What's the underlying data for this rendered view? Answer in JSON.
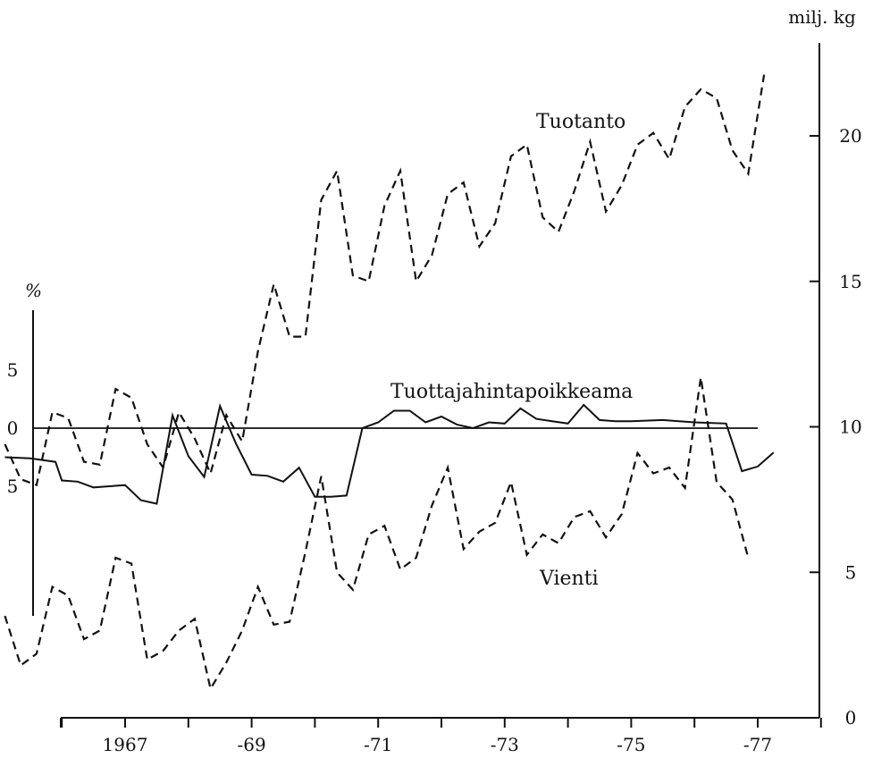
{
  "chart_data": {
    "type": "line",
    "x_tick_labels": [
      "1967",
      "-69",
      "-71",
      "-73",
      "-75",
      "-77"
    ],
    "x_tick_years": [
      1967,
      1969,
      1971,
      1973,
      1975,
      1977
    ],
    "xlim": [
      1965.0,
      1978.5
    ],
    "right_axis": {
      "unit": "milj. kg",
      "ticks": [
        0,
        5,
        10,
        15,
        20
      ],
      "ylim": [
        0,
        23
      ]
    },
    "left_axis": {
      "unit": "%",
      "tick_labels": [
        "5",
        "0",
        "5"
      ],
      "ticks": [
        5,
        0,
        -5
      ],
      "ylim": [
        -16.2,
        10.4
      ]
    },
    "series": [
      {
        "name": "Tuotanto",
        "axis": "right",
        "style": "dashed",
        "x": [
          1965.1,
          1965.35,
          1965.6,
          1965.85,
          1966.1,
          1966.35,
          1966.6,
          1966.85,
          1967.1,
          1967.35,
          1967.6,
          1967.85,
          1968.1,
          1968.35,
          1968.6,
          1968.85,
          1969.1,
          1969.35,
          1969.6,
          1969.85,
          1970.1,
          1970.35,
          1970.6,
          1970.85,
          1971.1,
          1971.35,
          1971.6,
          1971.85,
          1972.1,
          1972.35,
          1972.6,
          1972.85,
          1973.1,
          1973.35,
          1973.6,
          1973.85,
          1974.1,
          1974.35,
          1974.6,
          1974.85,
          1975.1,
          1975.35,
          1975.6,
          1975.85,
          1976.1,
          1976.35,
          1976.6,
          1976.85,
          1977.1,
          1977.35
        ],
        "values": [
          9.4,
          8.2,
          8.0,
          10.5,
          10.3,
          8.8,
          8.7,
          11.3,
          11.0,
          9.4,
          8.6,
          10.5,
          9.6,
          8.4,
          10.4,
          9.5,
          12.6,
          14.9,
          13.1,
          13.1,
          17.8,
          18.8,
          15.2,
          15.0,
          17.6,
          18.8,
          15.0,
          15.9,
          18.0,
          18.4,
          16.2,
          17.0,
          19.3,
          19.7,
          17.2,
          16.7,
          18.1,
          19.8,
          17.4,
          18.3,
          19.7,
          20.1,
          19.2,
          21.0,
          21.6,
          21.3,
          19.5,
          18.7,
          22.1,
          null
        ]
      },
      {
        "name": "Vienti",
        "axis": "right",
        "style": "dashed",
        "x": [
          1965.1,
          1965.35,
          1965.6,
          1965.85,
          1966.1,
          1966.35,
          1966.6,
          1966.85,
          1967.1,
          1967.35,
          1967.6,
          1967.85,
          1968.1,
          1968.35,
          1968.6,
          1968.85,
          1969.1,
          1969.35,
          1969.6,
          1969.85,
          1970.1,
          1970.35,
          1970.6,
          1970.85,
          1971.1,
          1971.35,
          1971.6,
          1971.85,
          1972.1,
          1972.35,
          1972.6,
          1972.85,
          1973.1,
          1973.35,
          1973.6,
          1973.85,
          1974.1,
          1974.35,
          1974.6,
          1974.85,
          1975.1,
          1975.35,
          1975.6,
          1975.85,
          1976.1,
          1976.35,
          1976.6,
          1976.85,
          1977.1
        ],
        "values": [
          3.5,
          1.8,
          2.2,
          4.5,
          4.2,
          2.7,
          3.0,
          5.5,
          5.3,
          2.0,
          2.3,
          3.0,
          3.4,
          1.0,
          1.9,
          3.0,
          4.5,
          3.2,
          3.3,
          5.7,
          8.3,
          5.0,
          4.4,
          6.3,
          6.6,
          5.1,
          5.5,
          7.3,
          8.6,
          5.8,
          6.4,
          6.7,
          8.1,
          5.6,
          6.3,
          6.0,
          6.9,
          7.1,
          6.2,
          7.0,
          9.1,
          8.4,
          8.6,
          7.9,
          11.7,
          8.1,
          7.5,
          5.5,
          null
        ]
      },
      {
        "name": "Tuottajahintapoikkeama",
        "axis": "left",
        "style": "solid",
        "x": [
          1965.1,
          1965.5,
          1965.9,
          1966.0,
          1966.25,
          1966.5,
          1966.75,
          1967.0,
          1967.25,
          1967.5,
          1967.75,
          1968.0,
          1968.25,
          1968.5,
          1968.75,
          1969.0,
          1969.25,
          1969.5,
          1969.75,
          1970.0,
          1970.25,
          1970.5,
          1970.75,
          1971.0,
          1971.25,
          1971.5,
          1971.75,
          1972.0,
          1972.25,
          1972.5,
          1972.75,
          1973.0,
          1973.25,
          1973.5,
          1973.75,
          1974.0,
          1974.25,
          1974.5,
          1974.75,
          1975.0,
          1975.5,
          1976.0,
          1976.5,
          1976.75,
          1977.0,
          1977.25
        ],
        "values": [
          -2.5,
          -2.6,
          -2.9,
          -4.5,
          -4.6,
          -5.1,
          -5.0,
          -4.9,
          -6.2,
          -6.5,
          1.1,
          -2.4,
          -4.2,
          1.9,
          -1.3,
          -4.0,
          -4.1,
          -4.6,
          -3.4,
          -5.9,
          -5.9,
          -5.8,
          0.0,
          0.5,
          1.5,
          1.5,
          0.5,
          1.0,
          0.3,
          0.0,
          0.5,
          0.4,
          1.7,
          0.8,
          0.6,
          0.4,
          2.0,
          0.7,
          0.6,
          0.6,
          0.7,
          0.5,
          0.4,
          -3.7,
          -3.3,
          -2.1
        ]
      }
    ],
    "series_labels": {
      "tuotanto": "Tuotanto",
      "vienti": "Vienti",
      "tuottajahintapoikkeama": "Tuottajahintapoikkeama"
    }
  }
}
